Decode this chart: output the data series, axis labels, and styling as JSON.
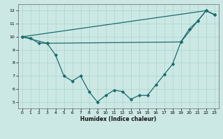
{
  "xlabel": "Humidex (Indice chaleur)",
  "bg_color": "#cce8e4",
  "line_color": "#1a6b6b",
  "grid_color": "#aad4cc",
  "xlim": [
    -0.5,
    23.5
  ],
  "ylim": [
    4.5,
    12.5
  ],
  "xticks": [
    0,
    1,
    2,
    3,
    4,
    5,
    6,
    7,
    8,
    9,
    10,
    11,
    12,
    13,
    14,
    15,
    16,
    17,
    18,
    19,
    20,
    21,
    22,
    23
  ],
  "yticks": [
    5,
    6,
    7,
    8,
    9,
    10,
    11,
    12
  ],
  "line1_x": [
    0,
    1,
    2,
    3,
    4,
    5,
    6,
    7,
    8,
    9,
    10,
    11,
    12,
    13,
    14,
    15,
    16,
    17,
    18,
    19,
    20,
    21,
    22,
    23
  ],
  "line1_y": [
    10.0,
    9.9,
    9.5,
    9.5,
    8.6,
    7.0,
    6.6,
    7.0,
    5.8,
    5.0,
    5.5,
    5.9,
    5.8,
    5.2,
    5.5,
    5.5,
    6.3,
    7.1,
    7.9,
    9.6,
    10.6,
    11.2,
    12.0,
    11.7
  ],
  "line2_x": [
    0,
    22,
    23
  ],
  "line2_y": [
    10.0,
    12.0,
    11.7
  ],
  "line3_x": [
    0,
    3,
    19,
    21,
    22,
    23
  ],
  "line3_y": [
    10.0,
    9.5,
    9.6,
    11.2,
    12.0,
    11.7
  ],
  "xlabel_fontsize": 5.5,
  "tick_fontsize": 4.5
}
